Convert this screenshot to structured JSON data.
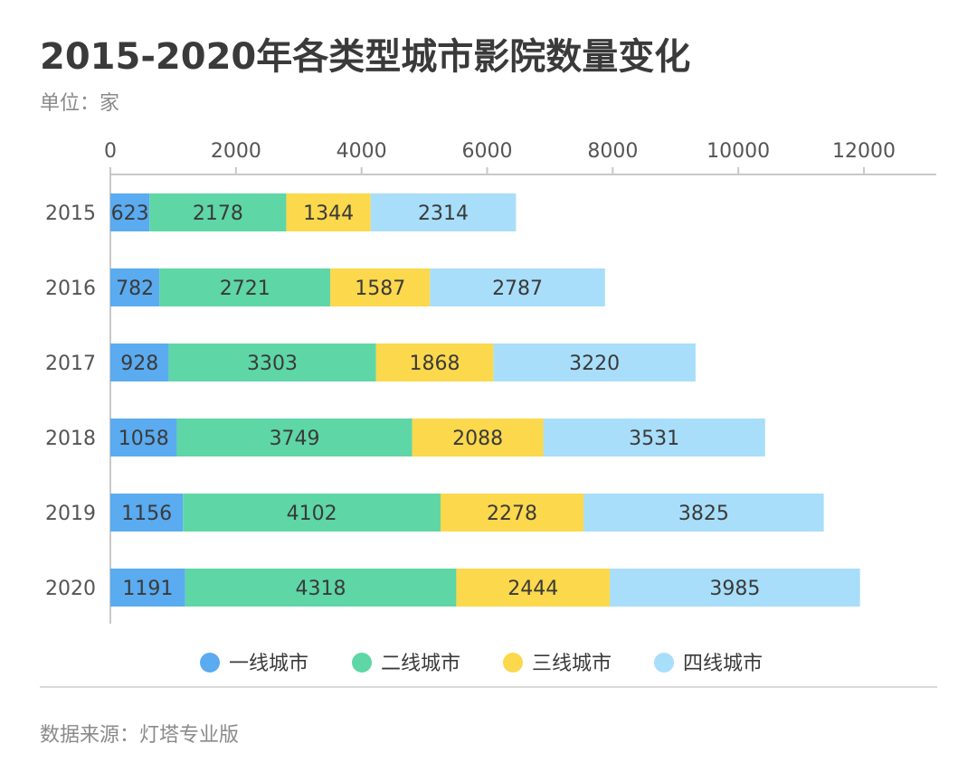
{
  "header": {
    "title": "2015-2020年各类型城市影院数量变化",
    "unit": "单位：家"
  },
  "footer": {
    "source": "数据来源：灯塔专业版"
  },
  "chart_data": {
    "type": "bar",
    "orientation": "horizontal",
    "stacked": true,
    "categories": [
      "2015",
      "2016",
      "2017",
      "2018",
      "2019",
      "2020"
    ],
    "series": [
      {
        "name": "一线城市",
        "color": "#5aabf0",
        "values": [
          623,
          782,
          928,
          1058,
          1156,
          1191
        ]
      },
      {
        "name": "二线城市",
        "color": "#5ed6a6",
        "values": [
          2178,
          2721,
          3303,
          3749,
          4102,
          4318
        ]
      },
      {
        "name": "三线城市",
        "color": "#fbd84c",
        "values": [
          1344,
          1587,
          1868,
          2088,
          2278,
          2444
        ]
      },
      {
        "name": "四线城市",
        "color": "#a8def9",
        "values": [
          2314,
          2787,
          3220,
          3531,
          3825,
          3985
        ]
      }
    ],
    "xlim": [
      0,
      12000
    ],
    "xticks": [
      0,
      2000,
      4000,
      6000,
      8000,
      10000,
      12000
    ],
    "xtick_labels": [
      "0",
      "2000",
      "4000",
      "6000",
      "8000",
      "10000",
      "12000"
    ],
    "axis_position": "top",
    "grid": false,
    "legend_position": "bottom",
    "data_labels": true
  }
}
